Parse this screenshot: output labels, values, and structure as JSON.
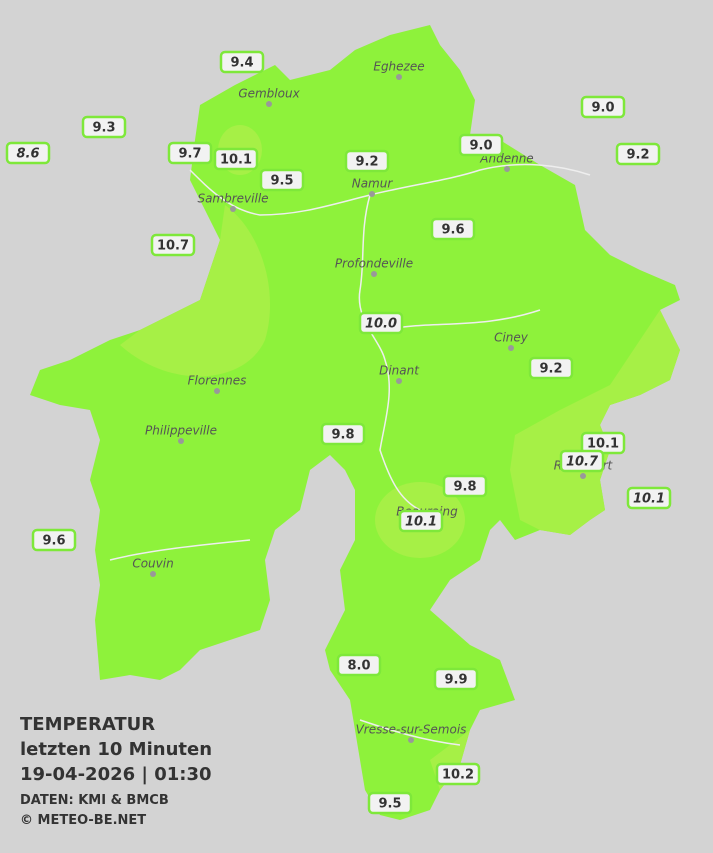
{
  "legend": {
    "title": "TEMPERATUR",
    "subtitle": "letzten 10 Minuten",
    "datetime": "19-04-2026  |  01:30",
    "source": "DATEN: KMI & BMCB",
    "copyright": "© METEO-BE.NET"
  },
  "towns": [
    "Eghezee",
    "Gembloux",
    "Andenne",
    "Namur",
    "Sambreville",
    "Profondeville",
    "Ciney",
    "Dinant",
    "Florennes",
    "Philippeville",
    "Rochefort",
    "Beauraing",
    "Couvin",
    "Vresse-sur-Semois"
  ],
  "stations": [
    {
      "value": "9.4"
    },
    {
      "value": "9.3"
    },
    {
      "value": "8.6",
      "italic": true
    },
    {
      "value": "9.7"
    },
    {
      "value": "10.1"
    },
    {
      "value": "9.5"
    },
    {
      "value": "9.2"
    },
    {
      "value": "9.0"
    },
    {
      "value": "9.0"
    },
    {
      "value": "9.2"
    },
    {
      "value": "10.7"
    },
    {
      "value": "9.6"
    },
    {
      "value": "10.0",
      "italic": true
    },
    {
      "value": "9.2"
    },
    {
      "value": "9.8"
    },
    {
      "value": "10.1"
    },
    {
      "value": "10.7",
      "italic": true
    },
    {
      "value": "9.8"
    },
    {
      "value": "10.1",
      "italic": true
    },
    {
      "value": "10.1",
      "italic": true
    },
    {
      "value": "9.6"
    },
    {
      "value": "8.0"
    },
    {
      "value": "9.9"
    },
    {
      "value": "10.2"
    },
    {
      "value": "9.5"
    }
  ]
}
